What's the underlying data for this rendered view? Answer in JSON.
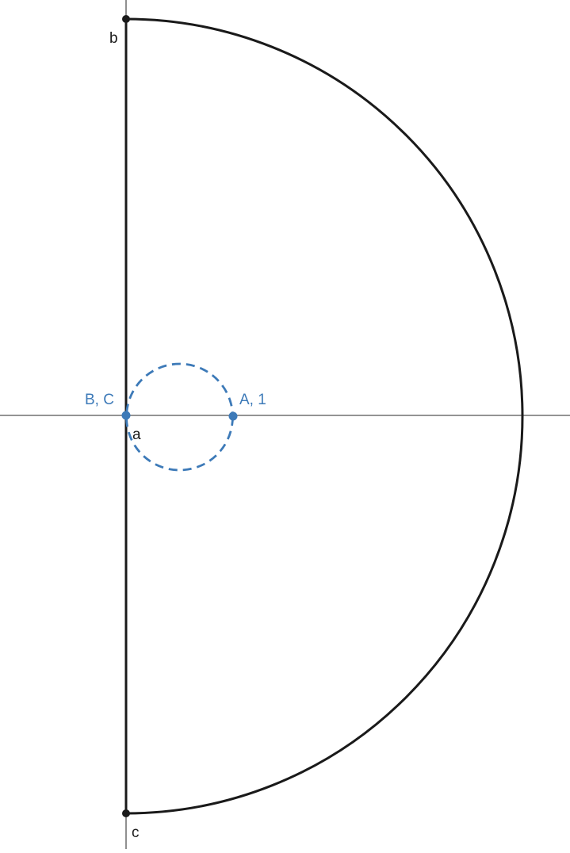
{
  "colors": {
    "background": "#ffffff",
    "axis": "#555555",
    "contour": "#1a1a1a",
    "circle": "#3d7ab8",
    "point_black": "#1a1a1a",
    "point_blue": "#3d7ab8"
  },
  "labels": {
    "point_b": "b",
    "point_c": "c",
    "point_a": "a",
    "point_bc": "B, C",
    "point_a1": "A, 1"
  },
  "diagram": {
    "description_type": "nyquist-style contour",
    "contour_style": "solid",
    "circle_style": "dashed"
  }
}
